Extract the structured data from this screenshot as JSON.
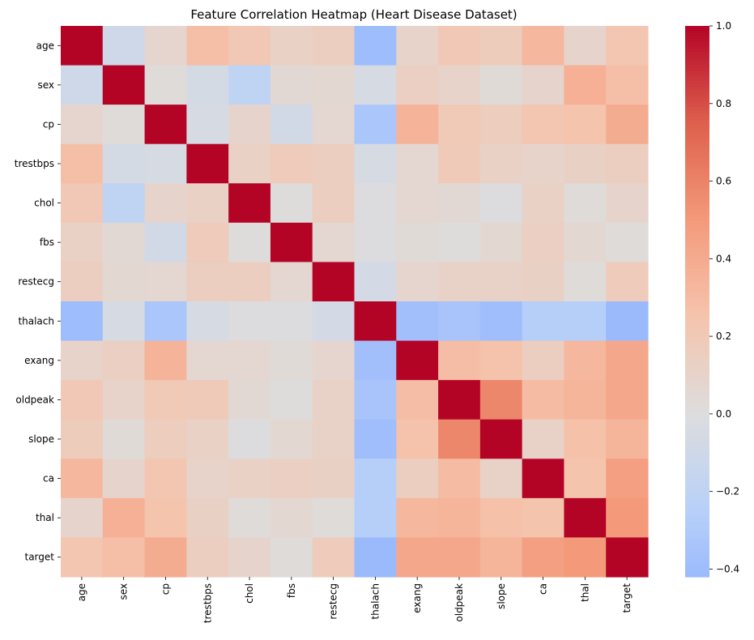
{
  "chart_data": {
    "type": "heatmap",
    "title": "Feature Correlation Heatmap (Heart Disease Dataset)",
    "xlabel": "",
    "ylabel": "",
    "labels": [
      "age",
      "sex",
      "cp",
      "trestbps",
      "chol",
      "fbs",
      "restecg",
      "thalach",
      "exang",
      "oldpeak",
      "slope",
      "ca",
      "thal",
      "target"
    ],
    "matrix": [
      [
        1.0,
        -0.1,
        0.08,
        0.28,
        0.21,
        0.12,
        0.15,
        -0.4,
        0.1,
        0.21,
        0.17,
        0.33,
        0.09,
        0.23
      ],
      [
        -0.1,
        1.0,
        0.02,
        -0.06,
        -0.2,
        0.05,
        0.06,
        -0.05,
        0.14,
        0.1,
        0.03,
        0.09,
        0.37,
        0.28
      ],
      [
        0.08,
        0.02,
        1.0,
        -0.05,
        0.09,
        -0.08,
        0.07,
        -0.33,
        0.35,
        0.2,
        0.16,
        0.23,
        0.25,
        0.39
      ],
      [
        0.28,
        -0.06,
        -0.05,
        1.0,
        0.12,
        0.18,
        0.15,
        -0.05,
        0.07,
        0.19,
        0.12,
        0.1,
        0.13,
        0.15
      ],
      [
        0.21,
        -0.2,
        0.09,
        0.12,
        1.0,
        0.01,
        0.15,
        -0.01,
        0.07,
        0.05,
        -0.01,
        0.12,
        0.02,
        0.09
      ],
      [
        0.12,
        0.05,
        -0.08,
        0.18,
        0.01,
        1.0,
        0.07,
        -0.01,
        0.03,
        0.01,
        0.06,
        0.14,
        0.06,
        0.02
      ],
      [
        0.15,
        0.06,
        0.07,
        0.15,
        0.15,
        0.07,
        1.0,
        -0.07,
        0.08,
        0.11,
        0.11,
        0.13,
        0.02,
        0.18
      ],
      [
        -0.4,
        -0.05,
        -0.33,
        -0.05,
        -0.01,
        -0.01,
        -0.07,
        1.0,
        -0.38,
        -0.34,
        -0.39,
        -0.26,
        -0.26,
        -0.42
      ],
      [
        0.1,
        0.14,
        0.35,
        0.07,
        0.07,
        0.03,
        0.08,
        -0.38,
        1.0,
        0.29,
        0.26,
        0.15,
        0.33,
        0.42
      ],
      [
        0.21,
        0.1,
        0.2,
        0.19,
        0.05,
        0.01,
        0.11,
        -0.34,
        0.29,
        1.0,
        0.58,
        0.3,
        0.34,
        0.42
      ],
      [
        0.17,
        0.03,
        0.16,
        0.12,
        -0.01,
        0.06,
        0.11,
        -0.39,
        0.26,
        0.58,
        1.0,
        0.11,
        0.27,
        0.34
      ],
      [
        0.33,
        0.09,
        0.23,
        0.1,
        0.12,
        0.14,
        0.13,
        -0.26,
        0.15,
        0.3,
        0.11,
        1.0,
        0.25,
        0.47
      ],
      [
        0.09,
        0.37,
        0.25,
        0.13,
        0.02,
        0.06,
        0.02,
        -0.26,
        0.33,
        0.34,
        0.27,
        0.25,
        1.0,
        0.5
      ],
      [
        0.23,
        0.28,
        0.39,
        0.15,
        0.09,
        0.02,
        0.18,
        -0.42,
        0.42,
        0.42,
        0.34,
        0.47,
        0.5,
        1.0
      ]
    ],
    "colorbar": {
      "vmin": -0.42,
      "vmax": 1.0,
      "center": 0,
      "ticks": [
        1.0,
        0.8,
        0.6,
        0.4,
        0.2,
        0.0,
        -0.2,
        -0.4
      ],
      "tick_labels": [
        "1.0",
        "0.8",
        "0.6",
        "0.4",
        "0.2",
        "0.0",
        "−0.2",
        "−0.4"
      ]
    },
    "colormap": "coolwarm",
    "grid": false,
    "legend": "colorbar-right"
  }
}
